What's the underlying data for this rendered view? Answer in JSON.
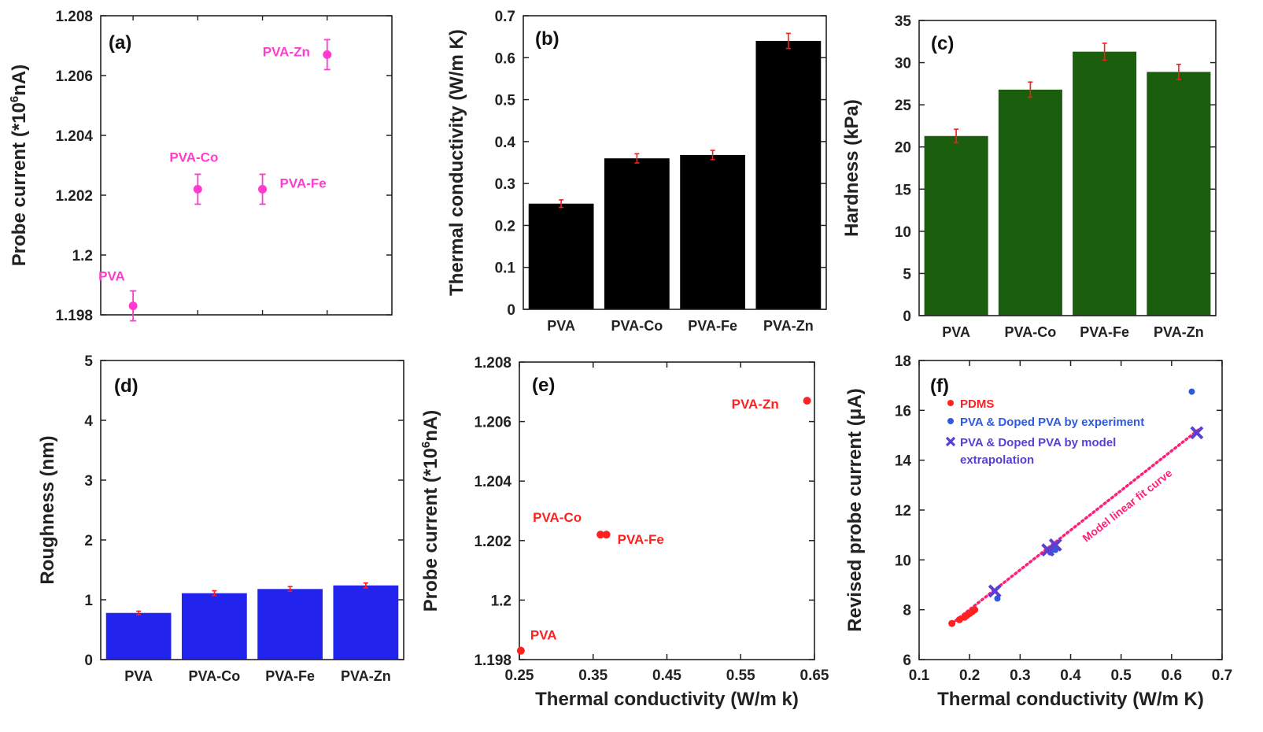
{
  "chart_data": [
    {
      "id": "a",
      "type": "scatter",
      "panel_label": "(a)",
      "title": "",
      "xlabel": "",
      "ylabel": "Probe current (*10<sup>6</sup>nA)",
      "ylabel_parts": [
        "Probe current (*10",
        "6",
        "nA)"
      ],
      "ylim": [
        1.198,
        1.208
      ],
      "yticks": [
        1.198,
        1.2,
        1.202,
        1.204,
        1.206,
        1.208
      ],
      "ytick_labels": [
        "1.198",
        "1.2",
        "1.202",
        "1.204",
        "1.206",
        "1.208"
      ],
      "xlim": [
        0.5,
        5.0
      ],
      "color": "#ff3ccf",
      "points": [
        {
          "x": 1,
          "y": 1.1983,
          "err": 0.0005,
          "label": "PVA"
        },
        {
          "x": 2,
          "y": 1.2022,
          "err": 0.0005,
          "label": "PVA-Co"
        },
        {
          "x": 3,
          "y": 1.2022,
          "err": 0.0005,
          "label": "PVA-Fe"
        },
        {
          "x": 4,
          "y": 1.2067,
          "err": 0.0005,
          "label": "PVA-Zn"
        }
      ]
    },
    {
      "id": "b",
      "type": "bar",
      "panel_label": "(b)",
      "title": "",
      "xlabel": "",
      "ylabel": "Thermal conductivity (W/m K)",
      "ylim": [
        0,
        0.7
      ],
      "yticks": [
        0,
        0.1,
        0.2,
        0.3,
        0.4,
        0.5,
        0.6,
        0.7
      ],
      "ytick_labels": [
        "0",
        "0.1",
        "0.2",
        "0.3",
        "0.4",
        "0.5",
        "0.6",
        "0.7"
      ],
      "categories": [
        "PVA",
        "PVA-Co",
        "PVA-Fe",
        "PVA-Zn"
      ],
      "values": [
        0.252,
        0.36,
        0.368,
        0.64
      ],
      "errors": [
        0.009,
        0.011,
        0.011,
        0.018
      ],
      "bar_color": "#000000",
      "error_color": "#ff1a1a"
    },
    {
      "id": "c",
      "type": "bar",
      "panel_label": "(c)",
      "title": "",
      "xlabel": "",
      "ylabel": "Hardness (kPa)",
      "ylim": [
        0,
        35
      ],
      "yticks": [
        0,
        5,
        10,
        15,
        20,
        25,
        30,
        35
      ],
      "ytick_labels": [
        "0",
        "5",
        "10",
        "15",
        "20",
        "25",
        "30",
        "35"
      ],
      "categories": [
        "PVA",
        "PVA-Co",
        "PVA-Fe",
        "PVA-Zn"
      ],
      "values": [
        21.3,
        26.8,
        31.3,
        28.9
      ],
      "errors": [
        0.8,
        0.9,
        1.0,
        0.9
      ],
      "bar_color": "#1b5e0e",
      "error_color": "#ff1a1a"
    },
    {
      "id": "d",
      "type": "bar",
      "panel_label": "(d)",
      "title": "",
      "xlabel": "",
      "ylabel": "Roughness (nm)",
      "ylim": [
        0,
        5
      ],
      "yticks": [
        0,
        1,
        2,
        3,
        4,
        5
      ],
      "ytick_labels": [
        "0",
        "1",
        "2",
        "3",
        "4",
        "5"
      ],
      "categories": [
        "PVA",
        "PVA-Co",
        "PVA-Fe",
        "PVA-Zn"
      ],
      "values": [
        0.78,
        1.11,
        1.18,
        1.24
      ],
      "errors": [
        0.03,
        0.04,
        0.04,
        0.04
      ],
      "bar_color": "#2323ee",
      "error_color": "#ff1a1a"
    },
    {
      "id": "e",
      "type": "scatter",
      "panel_label": "(e)",
      "title": "",
      "xlabel": "Thermal conductivity (W/m k)",
      "ylabel_parts": [
        "Probe current (*10",
        "6",
        "nA)"
      ],
      "xlim": [
        0.25,
        0.65
      ],
      "xticks": [
        0.25,
        0.35,
        0.45,
        0.55,
        0.65
      ],
      "xtick_labels": [
        "0.25",
        "0.35",
        "0.45",
        "0.55",
        "0.65"
      ],
      "ylim": [
        1.198,
        1.208
      ],
      "yticks": [
        1.198,
        1.2,
        1.202,
        1.204,
        1.206,
        1.208
      ],
      "ytick_labels": [
        "1.198",
        "1.2",
        "1.202",
        "1.204",
        "1.206",
        "1.208"
      ],
      "color": "#ff2020",
      "points": [
        {
          "x": 0.252,
          "y": 1.1983,
          "label": "PVA"
        },
        {
          "x": 0.36,
          "y": 1.2022,
          "label": "PVA-Co"
        },
        {
          "x": 0.368,
          "y": 1.2022,
          "label": "PVA-Fe"
        },
        {
          "x": 0.64,
          "y": 1.2067,
          "label": "PVA-Zn"
        }
      ]
    },
    {
      "id": "f",
      "type": "scatter",
      "panel_label": "(f)",
      "title": "",
      "xlabel": "Thermal conductivity (W/m K)",
      "ylabel": "Revised  probe current (μA)",
      "xlim": [
        0.1,
        0.7
      ],
      "xticks": [
        0.1,
        0.2,
        0.3,
        0.4,
        0.5,
        0.6,
        0.7
      ],
      "xtick_labels": [
        "0.1",
        "0.2",
        "0.3",
        "0.4",
        "0.5",
        "0.6",
        "0.7"
      ],
      "ylim": [
        6,
        18
      ],
      "yticks": [
        6,
        8,
        10,
        12,
        14,
        16,
        18
      ],
      "ytick_labels": [
        "6",
        "8",
        "10",
        "12",
        "14",
        "16",
        "18"
      ],
      "legend_position": "top-left",
      "series": [
        {
          "name": "PDMS",
          "marker": "circle",
          "color": "#ff2020",
          "x": [
            0.165,
            0.18,
            0.19,
            0.195,
            0.2,
            0.205,
            0.21
          ],
          "y": [
            7.45,
            7.6,
            7.7,
            7.78,
            7.85,
            7.92,
            8.0
          ]
        },
        {
          "name": "PVA & Doped PVA by experiment",
          "marker": "circle",
          "color": "#2e5bd9",
          "x": [
            0.255,
            0.36,
            0.37,
            0.64
          ],
          "y": [
            8.45,
            10.3,
            10.4,
            16.75
          ]
        },
        {
          "name": "PVA & Doped PVA by model extrapolation",
          "name_lines": [
            "PVA & Doped PVA by model",
            "extrapolation"
          ],
          "marker": "x",
          "color": "#5a3fd6",
          "x": [
            0.25,
            0.355,
            0.37,
            0.65
          ],
          "y": [
            8.75,
            10.4,
            10.6,
            15.1
          ]
        }
      ],
      "fit": {
        "label": "Model linear fit curve",
        "color": "#ff1f7a",
        "x": [
          0.165,
          0.655
        ],
        "y": [
          7.45,
          15.25
        ]
      }
    }
  ]
}
